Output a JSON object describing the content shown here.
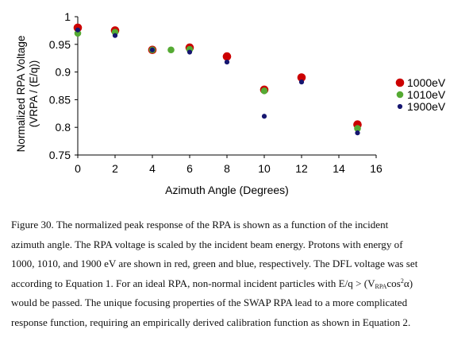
{
  "chart_data": {
    "type": "scatter",
    "title": "",
    "xlabel": "Azimuth Angle (Degrees)",
    "ylabel_line1": "Normalized RPA Voltage",
    "ylabel_line2": "(VRPA / (E/q))",
    "xlim": [
      0,
      16
    ],
    "ylim": [
      0.75,
      1
    ],
    "x_ticks": [
      0,
      2,
      4,
      6,
      8,
      10,
      12,
      14,
      16
    ],
    "x_tick_labels": [
      "0",
      "2",
      "4",
      "6",
      "8",
      "10",
      "12",
      "14",
      "16"
    ],
    "y_ticks": [
      0.75,
      0.8,
      0.85,
      0.9,
      0.95,
      1
    ],
    "y_tick_labels": [
      "0.75",
      "0.8",
      "0.85",
      "0.9",
      "0.95",
      "1"
    ],
    "grid": false,
    "legend_position": "right",
    "series": [
      {
        "name": "1000eV",
        "color": "#cc0000",
        "marker_size": "large",
        "points": [
          {
            "x": 0,
            "y": 0.98
          },
          {
            "x": 2,
            "y": 0.975
          },
          {
            "x": 4,
            "y": 0.94
          },
          {
            "x": 6,
            "y": 0.944
          },
          {
            "x": 8,
            "y": 0.928
          },
          {
            "x": 10,
            "y": 0.868
          },
          {
            "x": 12,
            "y": 0.89
          },
          {
            "x": 15,
            "y": 0.805
          }
        ]
      },
      {
        "name": "1010eV",
        "color": "#55aa33",
        "marker_size": "medium",
        "points": [
          {
            "x": 0,
            "y": 0.97
          },
          {
            "x": 2,
            "y": 0.972
          },
          {
            "x": 4,
            "y": 0.94
          },
          {
            "x": 5,
            "y": 0.94
          },
          {
            "x": 6,
            "y": 0.941
          },
          {
            "x": 10,
            "y": 0.866
          },
          {
            "x": 15,
            "y": 0.798
          }
        ]
      },
      {
        "name": "1900eV",
        "color": "#161670",
        "marker_size": "small",
        "points": [
          {
            "x": 0,
            "y": 0.976
          },
          {
            "x": 2,
            "y": 0.966
          },
          {
            "x": 4,
            "y": 0.94
          },
          {
            "x": 6,
            "y": 0.936
          },
          {
            "x": 8,
            "y": 0.918
          },
          {
            "x": 10,
            "y": 0.82
          },
          {
            "x": 12,
            "y": 0.882
          },
          {
            "x": 15,
            "y": 0.79
          }
        ]
      }
    ]
  },
  "caption": {
    "line1": "Figure 30. The normalized peak response of the RPA is shown as a function of the incident",
    "line2": "azimuth angle. The RPA voltage is scaled by the incident beam energy. Protons with energy of",
    "line3": "1000, 1010, and 1900 eV are shown in red, green and blue, respectively. The DFL voltage was set",
    "line4_pre": "according to Equation 1. For an ideal RPA, non-normal incident particles with E/q > (V",
    "line4_sub": "RPA",
    "line4_mid": "cos",
    "line4_sup": "2",
    "line4_post": "α)",
    "line5": "would be passed.  The unique focusing properties of the SWAP RPA lead to a more complicated",
    "line6": "response function, requiring an empirically derived calibration function as shown in Equation 2."
  }
}
